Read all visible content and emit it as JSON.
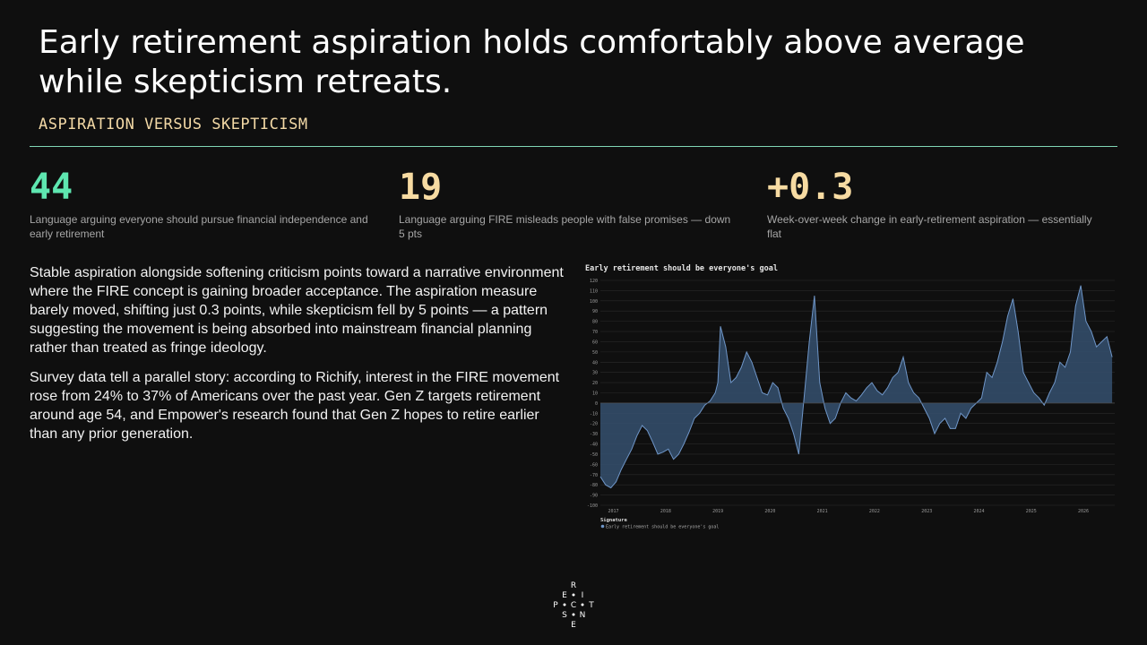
{
  "header": {
    "title": "Early retirement aspiration holds comfortably above average while skepticism retreats.",
    "subtitle": "ASPIRATION VERSUS SKEPTICISM"
  },
  "stats": [
    {
      "value": "44",
      "description": "Language arguing everyone should pursue financial independence and early retirement",
      "color": "#5ee6b0"
    },
    {
      "value": "19",
      "description": "Language arguing FIRE misleads people with false promises — down 5 pts",
      "color": "#f7dba2"
    },
    {
      "value": "+0.3",
      "description": "Week-over-week change in early-retirement aspiration — essentially flat",
      "color": "#f7dba2"
    }
  ],
  "body": {
    "paragraphs": [
      "Stable aspiration alongside softening criticism points toward a narrative environment where the FIRE concept is gaining broader acceptance. The aspiration measure barely moved, shifting just 0.3 points, while skepticism fell by 5 points — a pattern suggesting the movement is being absorbed into mainstream financial planning rather than treated as fringe ideology.",
      "Survey data tell a parallel story: according to Richify, interest in the FIRE movement rose from 24% to 37% of Americans over the past year. Gen Z targets retirement around age 54, and Empower's research found that Gen Z hopes to retire earlier than any prior generation."
    ]
  },
  "logo": {
    "letters": [
      "R",
      "E",
      "I",
      "P",
      "C",
      "T",
      "S",
      "N",
      "E"
    ]
  },
  "chart_data": {
    "type": "area",
    "title": "Early retirement should be everyone's goal",
    "xlabel": "",
    "ylabel": "",
    "ylim": [
      -100,
      120
    ],
    "yticks": [
      120,
      110,
      100,
      90,
      80,
      70,
      60,
      50,
      40,
      30,
      20,
      10,
      0,
      -10,
      -20,
      -30,
      -40,
      -50,
      -60,
      -70,
      -80,
      -90,
      -100
    ],
    "xlim": [
      2016.75,
      2026.6
    ],
    "xticks": [
      "2017",
      "2018",
      "2019",
      "2020",
      "2021",
      "2022",
      "2023",
      "2024",
      "2025",
      "2026"
    ],
    "grid": true,
    "legend": {
      "title": "Signature",
      "placement": "bottom-left"
    },
    "colors": {
      "line": "#6f96c8",
      "fill": "#35506f",
      "grid": "#2a2a2a",
      "text": "#9a9a9a"
    },
    "series": [
      {
        "name": "Early retirement should be everyone's goal",
        "x": [
          2016.75,
          2016.85,
          2016.95,
          2017.05,
          2017.15,
          2017.25,
          2017.35,
          2017.45,
          2017.55,
          2017.65,
          2017.75,
          2017.85,
          2017.95,
          2018.05,
          2018.15,
          2018.25,
          2018.35,
          2018.45,
          2018.55,
          2018.65,
          2018.75,
          2018.85,
          2018.95,
          2019.0,
          2019.05,
          2019.15,
          2019.25,
          2019.35,
          2019.45,
          2019.55,
          2019.65,
          2019.75,
          2019.85,
          2019.95,
          2020.05,
          2020.15,
          2020.25,
          2020.35,
          2020.45,
          2020.55,
          2020.65,
          2020.75,
          2020.85,
          2020.95,
          2021.05,
          2021.15,
          2021.25,
          2021.35,
          2021.45,
          2021.55,
          2021.65,
          2021.75,
          2021.85,
          2021.95,
          2022.05,
          2022.15,
          2022.25,
          2022.35,
          2022.45,
          2022.55,
          2022.65,
          2022.75,
          2022.85,
          2022.95,
          2023.05,
          2023.15,
          2023.25,
          2023.35,
          2023.45,
          2023.55,
          2023.65,
          2023.75,
          2023.85,
          2023.95,
          2024.05,
          2024.15,
          2024.25,
          2024.35,
          2024.45,
          2024.55,
          2024.65,
          2024.75,
          2024.85,
          2024.95,
          2025.05,
          2025.15,
          2025.25,
          2025.35,
          2025.45,
          2025.55,
          2025.65,
          2025.75,
          2025.85,
          2025.95,
          2026.05,
          2026.15,
          2026.25,
          2026.35,
          2026.45,
          2026.55
        ],
        "values": [
          -72,
          -80,
          -83,
          -77,
          -65,
          -55,
          -45,
          -32,
          -22,
          -27,
          -38,
          -50,
          -48,
          -45,
          -55,
          -50,
          -40,
          -28,
          -15,
          -10,
          -2,
          2,
          10,
          20,
          75,
          55,
          20,
          25,
          35,
          50,
          40,
          25,
          10,
          8,
          20,
          15,
          -5,
          -15,
          -30,
          -50,
          5,
          60,
          105,
          20,
          -5,
          -20,
          -15,
          0,
          10,
          5,
          2,
          8,
          15,
          20,
          12,
          8,
          15,
          25,
          30,
          45,
          20,
          10,
          5,
          -5,
          -15,
          -30,
          -20,
          -15,
          -25,
          -25,
          -10,
          -15,
          -5,
          0,
          5,
          30,
          25,
          40,
          60,
          85,
          102,
          70,
          30,
          20,
          10,
          5,
          -2,
          10,
          20,
          40,
          35,
          50,
          95,
          115,
          80,
          70,
          55,
          60,
          65,
          45
        ]
      }
    ]
  }
}
